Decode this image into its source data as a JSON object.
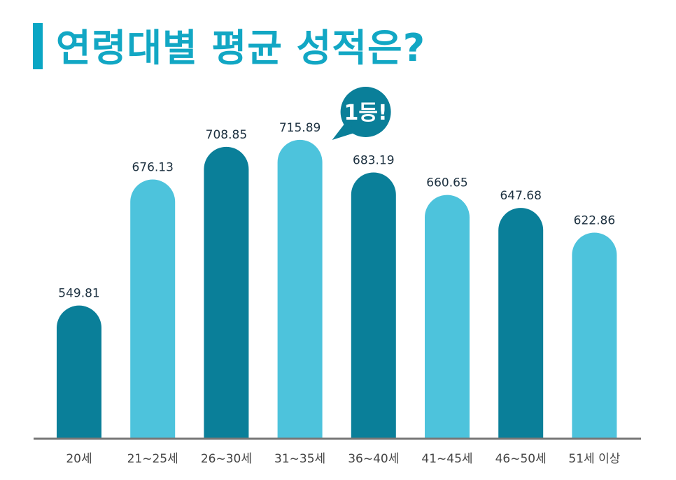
{
  "chart_data": {
    "type": "bar",
    "title": "연령대별 평균 성적은?",
    "categories": [
      "20세",
      "21~25세",
      "26~30세",
      "31~35세",
      "36~40세",
      "41~45세",
      "46~50세",
      "51세 이상"
    ],
    "values": [
      549.81,
      676.13,
      708.85,
      715.89,
      683.19,
      660.65,
      647.68,
      622.86
    ],
    "value_labels": [
      "549.81",
      "676.13",
      "708.85",
      "715.89",
      "683.19",
      "660.65",
      "647.68",
      "622.86"
    ],
    "bar_colors": [
      "#0a7f99",
      "#4dc3dc",
      "#0a7f99",
      "#4dc3dc",
      "#0a7f99",
      "#4dc3dc",
      "#0a7f99",
      "#4dc3dc"
    ],
    "ylim": [
      417,
      734
    ],
    "grid": false,
    "annotation": {
      "text": "1등!",
      "category": "31~35세",
      "color": "#0a7f99"
    },
    "title_color": "#12a7c4",
    "axis_color": "#777777"
  }
}
